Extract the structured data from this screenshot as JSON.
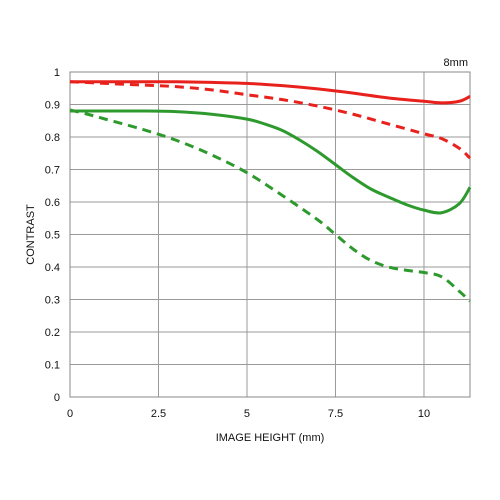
{
  "chart_data": {
    "type": "line",
    "annotation": "8mm",
    "xlabel": "IMAGE HEIGHT (mm)",
    "ylabel": "CONTRAST",
    "xlim": [
      0,
      11.3
    ],
    "ylim": [
      0,
      1
    ],
    "x_ticks": [
      0,
      2.5,
      5,
      7.5,
      10
    ],
    "x_tick_labels": [
      "0",
      "2.5",
      "5",
      "7.5",
      "10"
    ],
    "y_ticks": [
      0,
      0.1,
      0.2,
      0.3,
      0.4,
      0.5,
      0.6,
      0.7,
      0.8,
      0.9,
      1
    ],
    "y_tick_labels": [
      "0",
      "0.1",
      "0.2",
      "0.3",
      "0.4",
      "0.5",
      "0.6",
      "0.7",
      "0.8",
      "0.9",
      "1"
    ],
    "grid": true,
    "colors": {
      "red": "#e8211d",
      "green": "#2e9a2e",
      "grid": "#9a9a9a",
      "frame": "#888888"
    },
    "series": [
      {
        "color": "red",
        "style": "solid",
        "x": [
          0,
          1,
          2,
          3,
          4,
          5,
          6,
          7,
          8,
          9,
          10,
          10.5,
          11,
          11.3
        ],
        "y": [
          0.97,
          0.97,
          0.97,
          0.97,
          0.968,
          0.965,
          0.958,
          0.948,
          0.935,
          0.92,
          0.91,
          0.905,
          0.91,
          0.925
        ]
      },
      {
        "color": "red",
        "style": "dashed",
        "x": [
          0,
          1,
          2,
          3,
          4,
          5,
          6,
          7,
          8,
          9,
          10,
          10.5,
          11,
          11.3
        ],
        "y": [
          0.97,
          0.965,
          0.96,
          0.955,
          0.945,
          0.93,
          0.915,
          0.895,
          0.87,
          0.84,
          0.81,
          0.795,
          0.765,
          0.735
        ]
      },
      {
        "color": "green",
        "style": "solid",
        "x": [
          0,
          1,
          2,
          3,
          4,
          5,
          5.5,
          6,
          6.5,
          7,
          7.5,
          8,
          8.5,
          9,
          9.5,
          10,
          10.5,
          11,
          11.3
        ],
        "y": [
          0.88,
          0.88,
          0.88,
          0.878,
          0.87,
          0.855,
          0.84,
          0.82,
          0.79,
          0.755,
          0.715,
          0.675,
          0.64,
          0.615,
          0.592,
          0.575,
          0.567,
          0.595,
          0.645
        ]
      },
      {
        "color": "green",
        "style": "dashed",
        "x": [
          0,
          0.5,
          1,
          2,
          3,
          4,
          5,
          6,
          7,
          7.5,
          8,
          8.5,
          9,
          9.5,
          10,
          10.5,
          11,
          11.3
        ],
        "y": [
          0.883,
          0.87,
          0.855,
          0.825,
          0.79,
          0.745,
          0.69,
          0.62,
          0.545,
          0.5,
          0.455,
          0.42,
          0.4,
          0.39,
          0.383,
          0.37,
          0.325,
          0.295
        ]
      }
    ]
  }
}
